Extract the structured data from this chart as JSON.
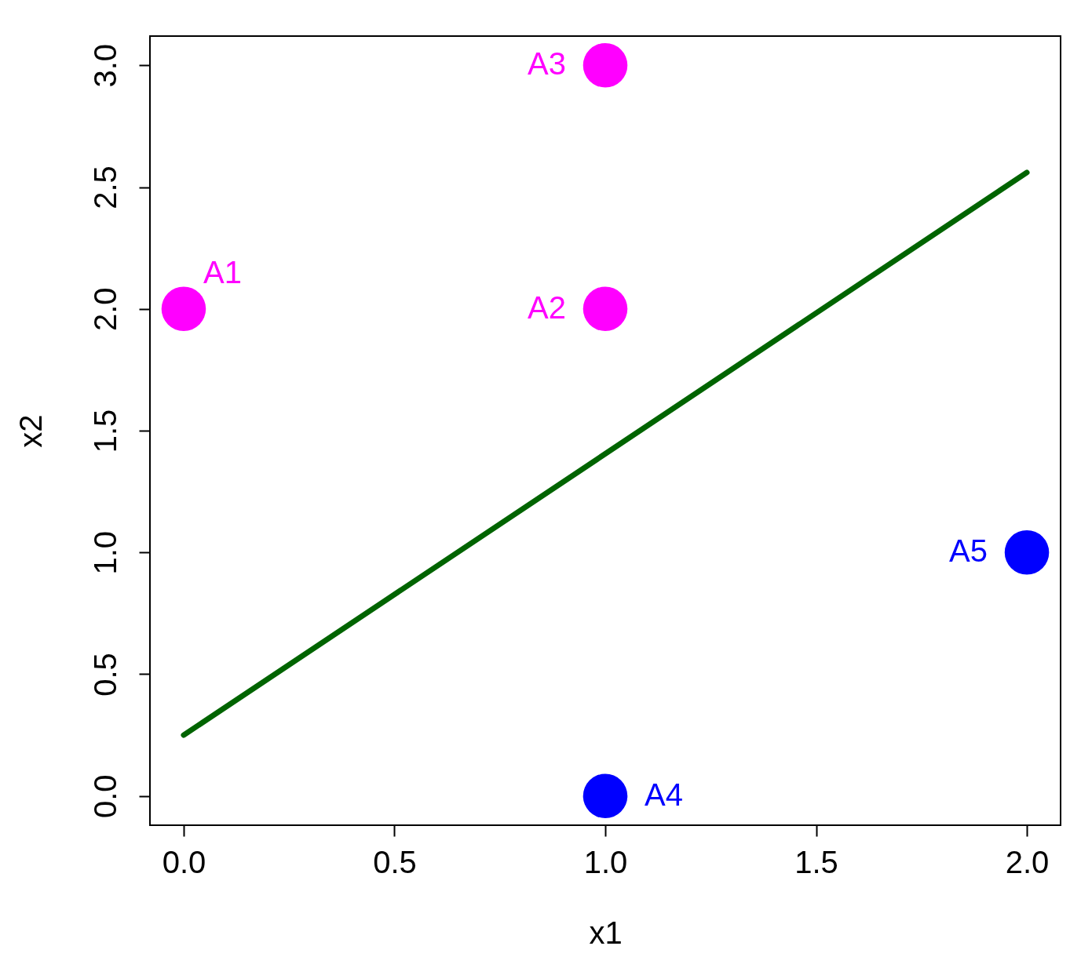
{
  "chart_data": {
    "type": "scatter",
    "xlabel": "x1",
    "ylabel": "x2",
    "xlim": [
      -0.08,
      2.08
    ],
    "ylim": [
      -0.12,
      3.12
    ],
    "xticks": [
      {
        "value": 0,
        "label": "0.0"
      },
      {
        "value": 0.5,
        "label": "0.5"
      },
      {
        "value": 1,
        "label": "1.0"
      },
      {
        "value": 1.5,
        "label": "1.5"
      },
      {
        "value": 2,
        "label": "2.0"
      }
    ],
    "yticks": [
      {
        "value": 0,
        "label": "0.0"
      },
      {
        "value": 0.5,
        "label": "0.5"
      },
      {
        "value": 1,
        "label": "1.0"
      },
      {
        "value": 1.5,
        "label": "1.5"
      },
      {
        "value": 2,
        "label": "2.0"
      },
      {
        "value": 2.5,
        "label": "2.5"
      },
      {
        "value": 3,
        "label": "3.0"
      }
    ],
    "grid": false,
    "series": [
      {
        "color": "#ff00ff",
        "marker": "circle",
        "x": [
          0,
          1,
          1
        ],
        "values": [
          2,
          2,
          3
        ],
        "value_labels": [
          "A1",
          "A2",
          "A3"
        ]
      },
      {
        "color": "#0000ff",
        "marker": "circle",
        "x": [
          1,
          2
        ],
        "values": [
          0,
          1
        ],
        "value_labels": [
          "A4",
          "A5"
        ]
      },
      {
        "type": "line",
        "color": "#006400",
        "x": [
          0,
          2
        ],
        "values": [
          0.25,
          2.56
        ]
      }
    ]
  }
}
